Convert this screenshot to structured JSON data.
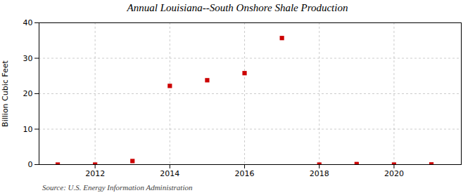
{
  "chart_data": {
    "type": "scatter",
    "title": "Annual Louisiana--South Onshore Shale Production",
    "ylabel": "Billion Cubic Feet",
    "annotations": [
      "Source: U.S. Energy Information Administration"
    ],
    "x": [
      2011,
      2012,
      2013,
      2014,
      2015,
      2016,
      2017,
      2018,
      2019,
      2020,
      2021
    ],
    "values": [
      0.0,
      0.0,
      1.0,
      22.2,
      23.8,
      25.8,
      35.7,
      0.0,
      0.15,
      0.0,
      0.05
    ],
    "color": "#cc0000",
    "marker": "square",
    "xlim": [
      2010.5,
      2021.8
    ],
    "ylim": [
      0,
      40
    ],
    "xticks": [
      2012,
      2014,
      2016,
      2018,
      2020
    ],
    "yticks": [
      0,
      10,
      20,
      30,
      40
    ],
    "grid": true
  }
}
